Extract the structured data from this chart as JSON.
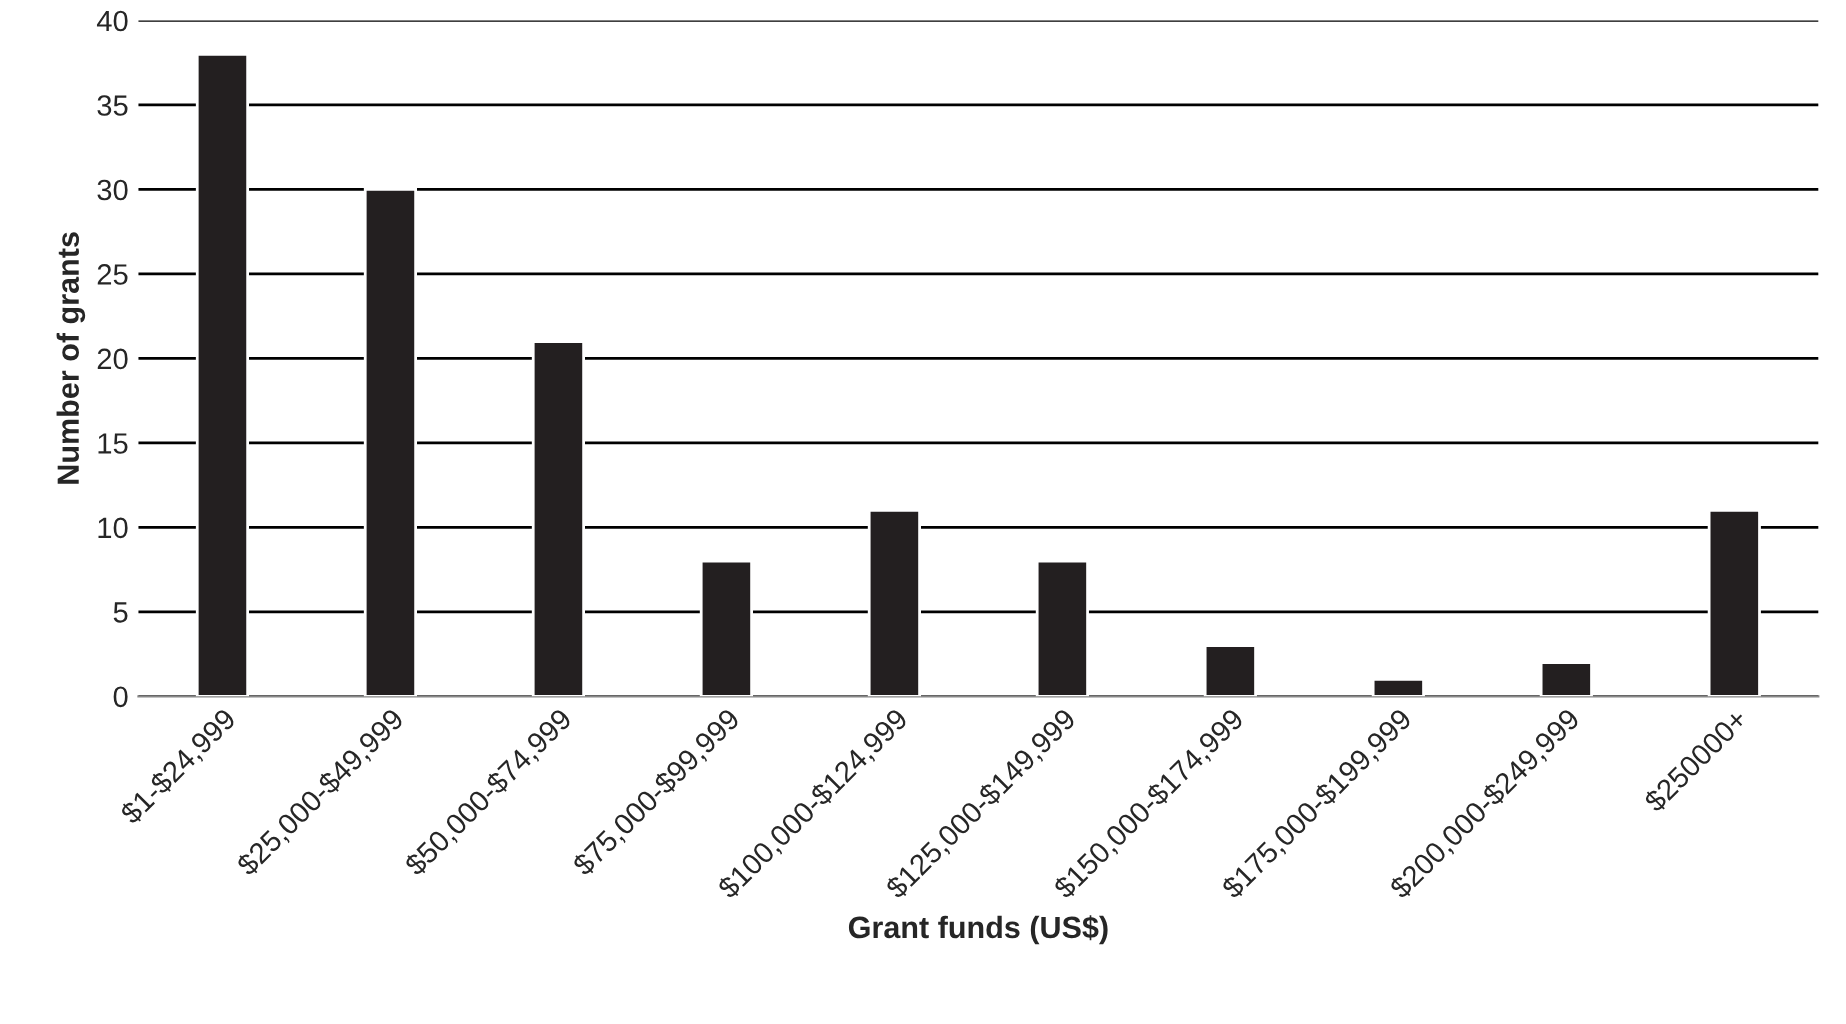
{
  "chart_data": {
    "type": "bar",
    "xlabel": "Grant funds (US$)",
    "ylabel": "Number of grants",
    "categories": [
      "$1-$24,999",
      "$25,000-$49,999",
      "$50,000-$74,999",
      "$75,000-$99,999",
      "$100,000-$124,999",
      "$125,000-$149,999",
      "$150,000-$174,999",
      "$175,000-$199,999",
      "$200,000-$249,999",
      "$250000+"
    ],
    "values": [
      38,
      30,
      21,
      8,
      11,
      8,
      3,
      1,
      2,
      11
    ],
    "color": "#231f20",
    "ylim": [
      0,
      40
    ],
    "yticks": [
      0,
      5,
      10,
      15,
      20,
      25,
      30,
      35,
      40
    ],
    "grid": "y"
  }
}
